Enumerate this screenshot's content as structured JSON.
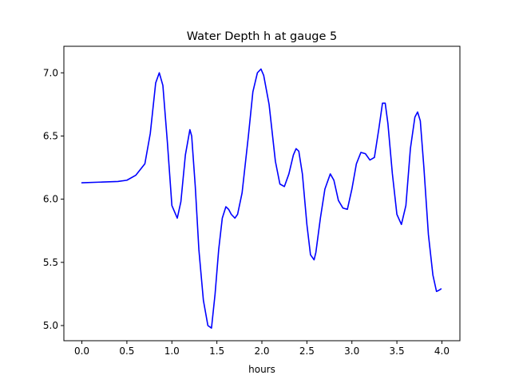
{
  "chart_data": {
    "type": "line",
    "title": "Water Depth h at gauge 5",
    "xlabel": "hours",
    "ylabel": "",
    "xlim": [
      -0.2,
      4.2
    ],
    "ylim": [
      4.88,
      7.21
    ],
    "grid": false,
    "line_color": "#0000ff",
    "xticks": [
      0.0,
      0.5,
      1.0,
      1.5,
      2.0,
      2.5,
      3.0,
      3.5,
      4.0
    ],
    "xtick_labels": [
      "0.0",
      "0.5",
      "1.0",
      "1.5",
      "2.0",
      "2.5",
      "3.0",
      "3.5",
      "4.0"
    ],
    "yticks": [
      5.0,
      5.5,
      6.0,
      6.5,
      7.0
    ],
    "ytick_labels": [
      "5.0",
      "5.5",
      "6.0",
      "6.5",
      "7.0"
    ],
    "series": [
      {
        "x": [
          0.0,
          0.2,
          0.4,
          0.5,
          0.6,
          0.7,
          0.76,
          0.82,
          0.86,
          0.9,
          0.95,
          1.0,
          1.06,
          1.1,
          1.15,
          1.2,
          1.22,
          1.26,
          1.3,
          1.35,
          1.4,
          1.44,
          1.48,
          1.52,
          1.56,
          1.6,
          1.63,
          1.66,
          1.7,
          1.73,
          1.78,
          1.85,
          1.9,
          1.95,
          1.99,
          2.02,
          2.08,
          2.15,
          2.2,
          2.25,
          2.3,
          2.35,
          2.38,
          2.41,
          2.45,
          2.5,
          2.54,
          2.58,
          2.6,
          2.65,
          2.7,
          2.76,
          2.8,
          2.85,
          2.9,
          2.95,
          3.0,
          3.05,
          3.1,
          3.15,
          3.2,
          3.25,
          3.3,
          3.34,
          3.37,
          3.4,
          3.45,
          3.5,
          3.55,
          3.6,
          3.65,
          3.7,
          3.73,
          3.76,
          3.8,
          3.85,
          3.9,
          3.94,
          3.97,
          3.99
        ],
        "y": [
          6.13,
          6.135,
          6.14,
          6.15,
          6.19,
          6.28,
          6.52,
          6.92,
          7.0,
          6.9,
          6.45,
          5.95,
          5.85,
          5.98,
          6.35,
          6.55,
          6.5,
          6.1,
          5.6,
          5.2,
          5.0,
          4.98,
          5.25,
          5.6,
          5.85,
          5.94,
          5.92,
          5.88,
          5.85,
          5.88,
          6.05,
          6.5,
          6.85,
          7.0,
          7.03,
          6.98,
          6.75,
          6.3,
          6.12,
          6.1,
          6.2,
          6.35,
          6.4,
          6.38,
          6.2,
          5.8,
          5.56,
          5.52,
          5.58,
          5.85,
          6.08,
          6.2,
          6.15,
          5.99,
          5.93,
          5.92,
          6.08,
          6.28,
          6.37,
          6.36,
          6.31,
          6.33,
          6.56,
          6.76,
          6.76,
          6.6,
          6.2,
          5.88,
          5.8,
          5.95,
          6.4,
          6.65,
          6.69,
          6.62,
          6.25,
          5.72,
          5.4,
          5.27,
          5.28,
          5.29
        ]
      }
    ]
  }
}
